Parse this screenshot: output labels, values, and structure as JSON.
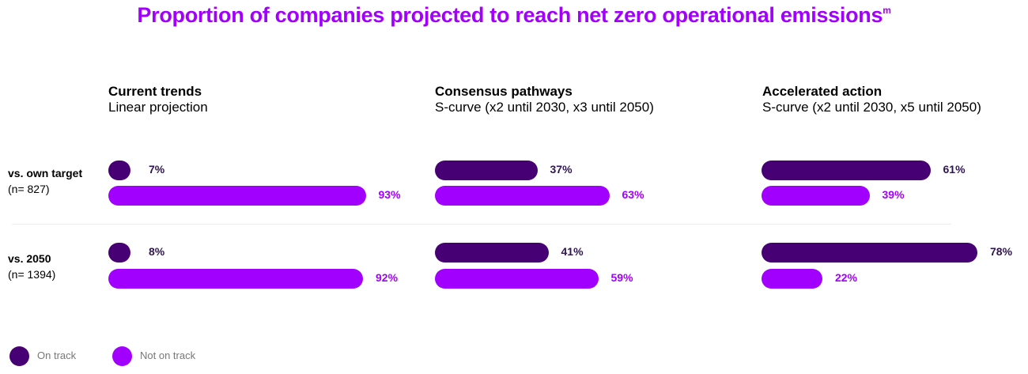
{
  "colors": {
    "on_track": "#460073",
    "not_on_track": "#a100ff",
    "on_track_label": "#2f1650",
    "title": "#a100ff"
  },
  "chart_data": {
    "type": "bar",
    "orientation": "horizontal",
    "title": "Proportion of companies projected to reach net zero operational emissions",
    "title_superscript": "m",
    "xlim": [
      0,
      100
    ],
    "grid": false,
    "legend_placement": "bottom-left",
    "legend": [
      {
        "label": "On track",
        "color": "#460073"
      },
      {
        "label": "Not on track",
        "color": "#a100ff"
      }
    ],
    "rows": [
      {
        "label": "vs. own target",
        "sublabel": "(n= 827)"
      },
      {
        "label": "vs. 2050",
        "sublabel": "(n= 1394)"
      }
    ],
    "panels": [
      {
        "title": "Current trends",
        "subtitle": "Linear projection",
        "values": [
          {
            "on_track": 7,
            "not_on_track": 93,
            "on_track_label": "7%",
            "not_on_track_label": "93%"
          },
          {
            "on_track": 8,
            "not_on_track": 92,
            "on_track_label": "8%",
            "not_on_track_label": "92%"
          }
        ]
      },
      {
        "title": "Consensus pathways",
        "subtitle": "S-curve (x2 until 2030, x3 until 2050)",
        "values": [
          {
            "on_track": 37,
            "not_on_track": 63,
            "on_track_label": "37%",
            "not_on_track_label": "63%"
          },
          {
            "on_track": 41,
            "not_on_track": 59,
            "on_track_label": "41%",
            "not_on_track_label": "59%"
          }
        ]
      },
      {
        "title": "Accelerated action",
        "subtitle": "S-curve (x2 until 2030, x5 until 2050)",
        "values": [
          {
            "on_track": 61,
            "not_on_track": 39,
            "on_track_label": "61%",
            "not_on_track_label": "39%"
          },
          {
            "on_track": 78,
            "not_on_track": 22,
            "on_track_label": "78%",
            "not_on_track_label": "22%"
          }
        ]
      }
    ]
  }
}
